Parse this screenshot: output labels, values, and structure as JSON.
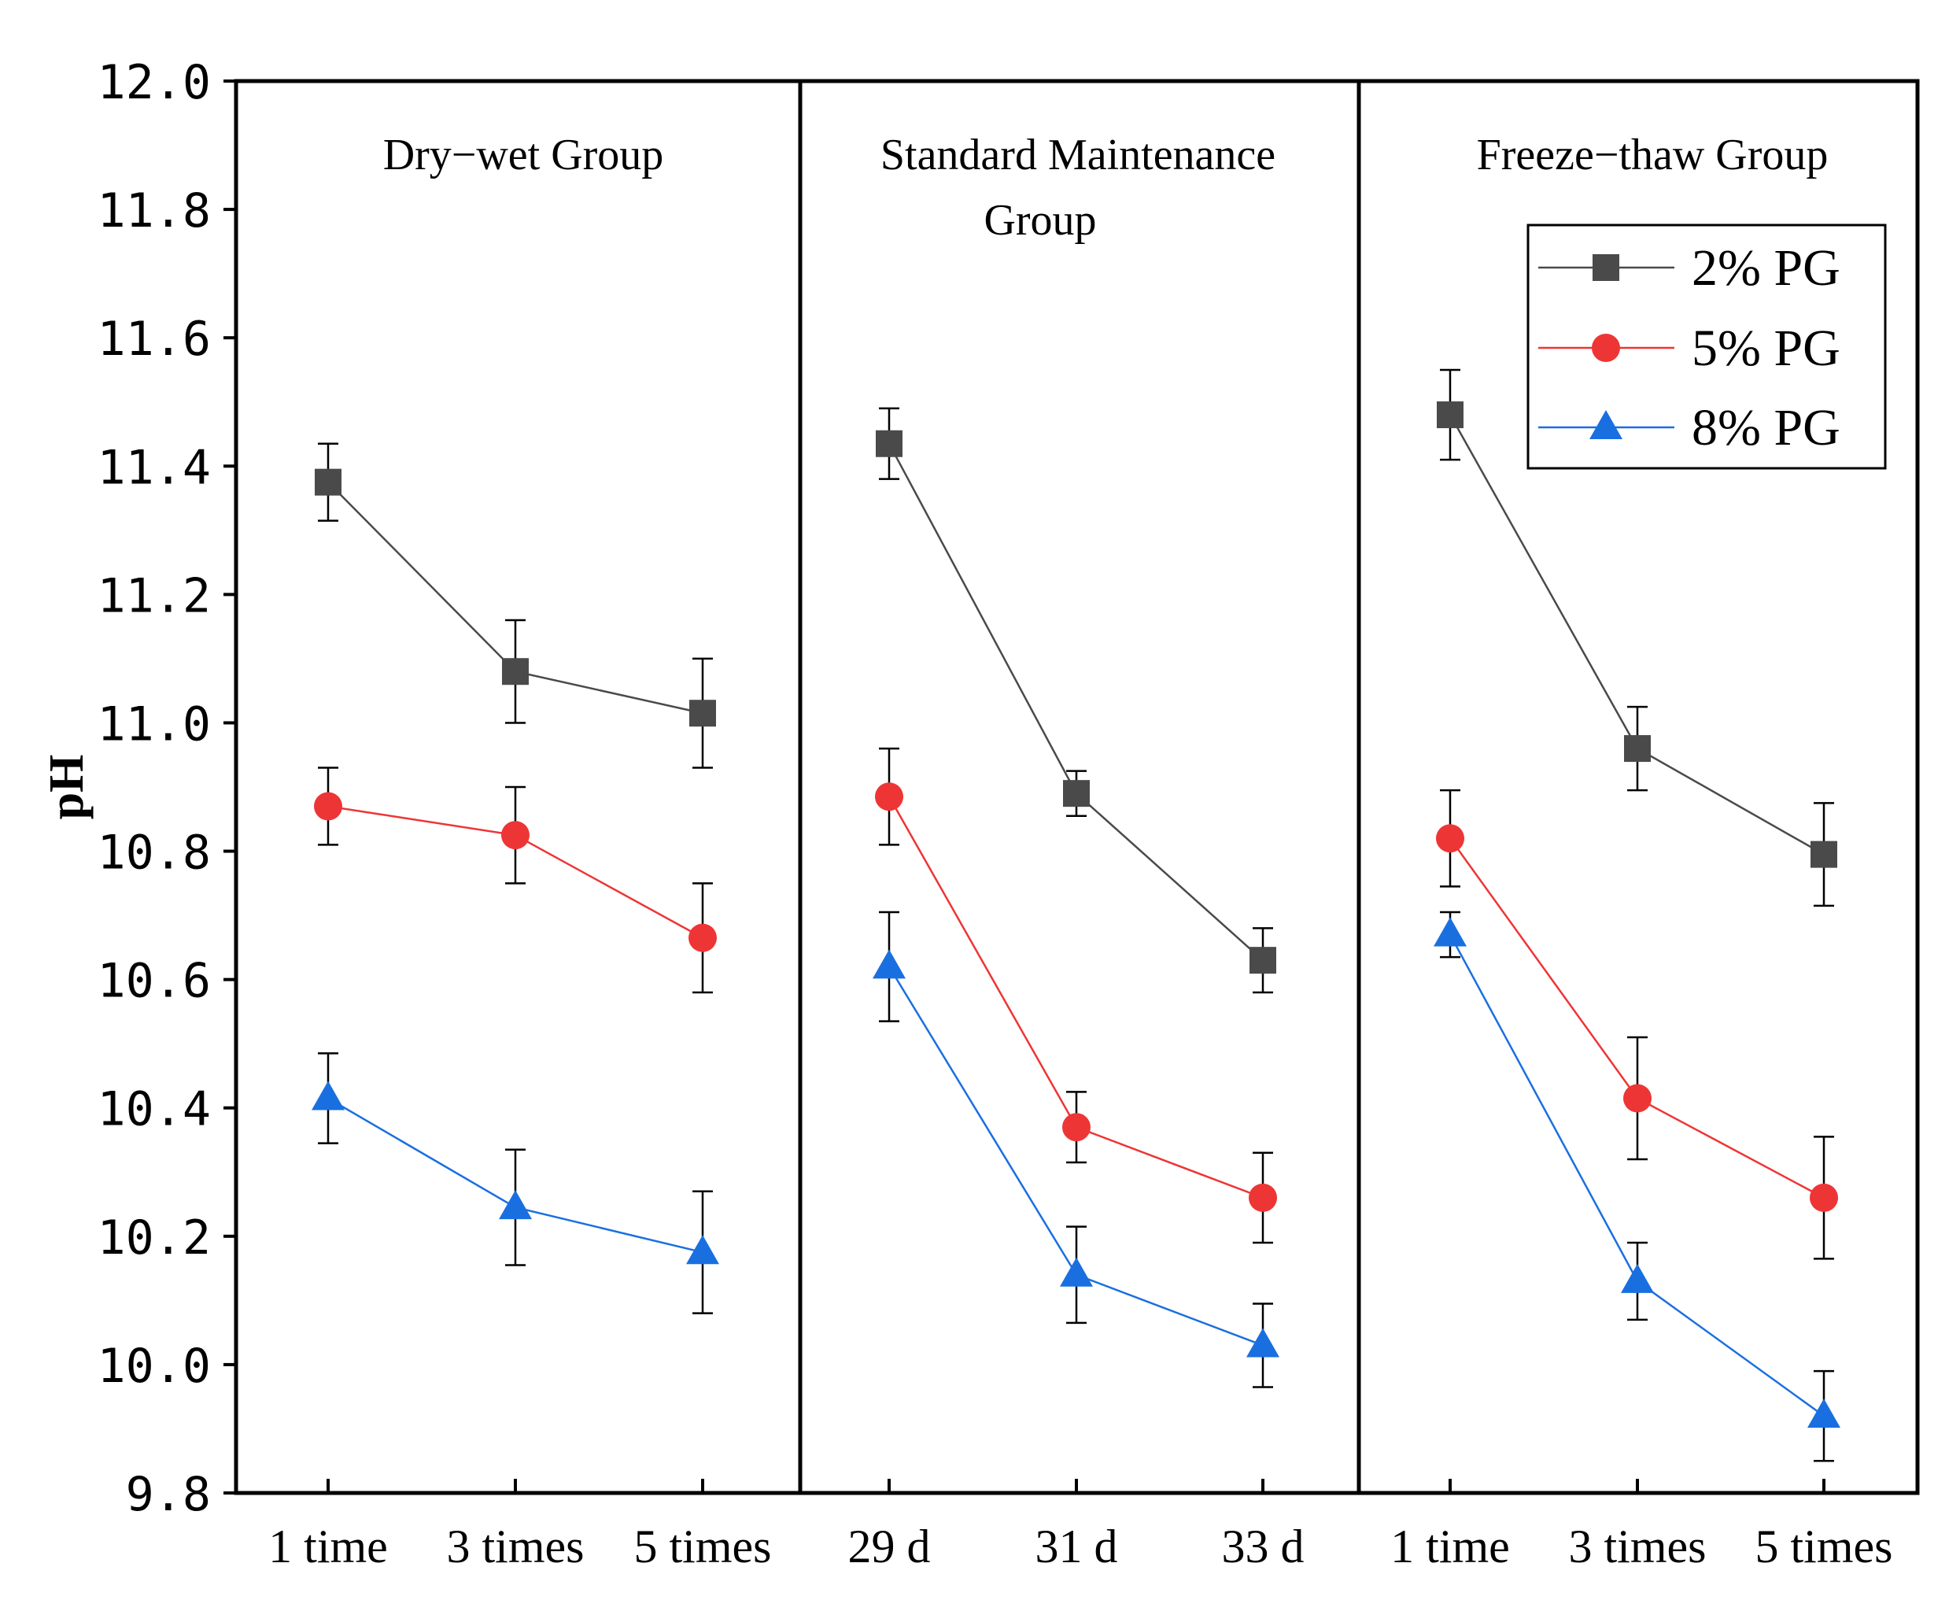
{
  "chart_data": {
    "type": "line",
    "ylabel": "pH",
    "ylim": [
      9.8,
      12.0
    ],
    "yticks": [
      "12.0",
      "11.8",
      "11.6",
      "11.4",
      "11.2",
      "11.0",
      "10.8",
      "10.6",
      "10.4",
      "10.2",
      "10.0",
      "9.8"
    ],
    "grid": false,
    "legend_position": "top-right",
    "panels": [
      {
        "title_lines": [
          "Dry−wet Group"
        ],
        "categories": [
          "1 time",
          "3 times",
          "5 times"
        ],
        "series": [
          {
            "name": "2% PG",
            "values": [
              11.375,
              11.08,
              11.015
            ],
            "errors": [
              0.06,
              0.08,
              0.085
            ]
          },
          {
            "name": "5% PG",
            "values": [
              10.87,
              10.825,
              10.665
            ],
            "errors": [
              0.06,
              0.075,
              0.085
            ]
          },
          {
            "name": "8% PG",
            "values": [
              10.415,
              10.245,
              10.175
            ],
            "errors": [
              0.07,
              0.09,
              0.095
            ]
          }
        ]
      },
      {
        "title_lines": [
          "Standard Maintenance",
          "Group"
        ],
        "categories": [
          "29 d",
          "31 d",
          "33 d"
        ],
        "series": [
          {
            "name": "2% PG",
            "values": [
              11.435,
              10.89,
              10.63
            ],
            "errors": [
              0.055,
              0.035,
              0.05
            ]
          },
          {
            "name": "5% PG",
            "values": [
              10.885,
              10.37,
              10.26
            ],
            "errors": [
              0.075,
              0.055,
              0.07
            ]
          },
          {
            "name": "8% PG",
            "values": [
              10.62,
              10.14,
              10.03
            ],
            "errors": [
              0.085,
              0.075,
              0.065
            ]
          }
        ]
      },
      {
        "title_lines": [
          "Freeze−thaw Group"
        ],
        "categories": [
          "1 time",
          "3 times",
          "5 times"
        ],
        "series": [
          {
            "name": "2% PG",
            "values": [
              11.48,
              10.96,
              10.795
            ],
            "errors": [
              0.07,
              0.065,
              0.08
            ]
          },
          {
            "name": "5% PG",
            "values": [
              10.82,
              10.415,
              10.26
            ],
            "errors": [
              0.075,
              0.095,
              0.095
            ]
          },
          {
            "name": "8% PG",
            "values": [
              10.67,
              10.13,
              9.92
            ],
            "errors": [
              0.035,
              0.06,
              0.07
            ]
          }
        ]
      }
    ],
    "legend": [
      {
        "name": "2% PG",
        "color": "#4a4a4a",
        "marker": "square"
      },
      {
        "name": "5% PG",
        "color": "#ee3535",
        "marker": "circle"
      },
      {
        "name": "8% PG",
        "color": "#1a6fe0",
        "marker": "triangle"
      }
    ]
  }
}
